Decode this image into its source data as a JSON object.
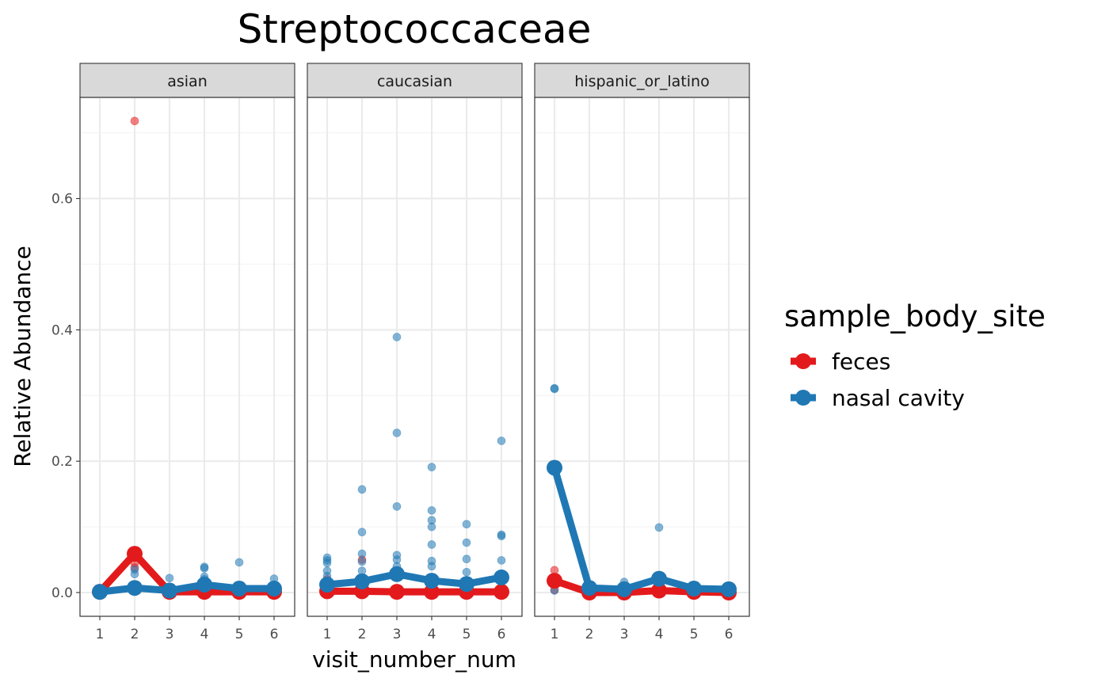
{
  "chart_data": {
    "type": "line",
    "title": "Streptococcaceae",
    "xlabel": "visit_number_num",
    "ylabel": "Relative Abundance",
    "x": [
      1,
      2,
      3,
      4,
      5,
      6
    ],
    "x_tick_labels": [
      "1",
      "2",
      "3",
      "4",
      "5",
      "6"
    ],
    "y_ticks": [
      0.0,
      0.2,
      0.4,
      0.6
    ],
    "y_tick_labels": [
      "0.0",
      "0.2",
      "0.4",
      "0.6"
    ],
    "ylim": [
      -0.036,
      0.79
    ],
    "xlim": [
      0.5,
      6.5
    ],
    "grid": true,
    "legend": {
      "title": "sample_body_site",
      "position": "right",
      "entries": [
        "feces",
        "nasal cavity"
      ]
    },
    "colors": {
      "feces": "#e31a1c",
      "nasal cavity": "#1f78b4"
    },
    "facets": [
      {
        "label": "asian",
        "series": [
          {
            "name": "feces",
            "mean": [
              0.001,
              0.059,
              0.001,
              0.001,
              0.001,
              0.001
            ],
            "points": [
              [
                1,
                0.002
              ],
              [
                2,
                0.718
              ],
              [
                2,
                0.045
              ],
              [
                2,
                0.038
              ],
              [
                3,
                0.001
              ],
              [
                4,
                0.001
              ],
              [
                5,
                0.001
              ],
              [
                6,
                0.001
              ]
            ]
          },
          {
            "name": "nasal cavity",
            "mean": [
              0.001,
              0.007,
              0.003,
              0.012,
              0.006,
              0.006
            ],
            "points": [
              [
                1,
                0.003
              ],
              [
                2,
                0.035
              ],
              [
                2,
                0.028
              ],
              [
                3,
                0.022
              ],
              [
                4,
                0.039
              ],
              [
                4,
                0.037
              ],
              [
                4,
                0.024
              ],
              [
                4,
                0.02
              ],
              [
                5,
                0.046
              ],
              [
                6,
                0.021
              ],
              [
                6,
                0.012
              ]
            ]
          }
        ]
      },
      {
        "label": "caucasian",
        "series": [
          {
            "name": "feces",
            "mean": [
              0.002,
              0.002,
              0.001,
              0.001,
              0.001,
              0.001
            ],
            "points": [
              [
                1,
                0.02
              ],
              [
                2,
                0.05
              ],
              [
                3,
                0.003
              ],
              [
                4,
                0.002
              ],
              [
                5,
                0.002
              ],
              [
                6,
                0.001
              ]
            ]
          },
          {
            "name": "nasal cavity",
            "mean": [
              0.012,
              0.017,
              0.028,
              0.018,
              0.013,
              0.023
            ],
            "points": [
              [
                1,
                0.053
              ],
              [
                1,
                0.049
              ],
              [
                1,
                0.045
              ],
              [
                1,
                0.033
              ],
              [
                1,
                0.025
              ],
              [
                2,
                0.157
              ],
              [
                2,
                0.092
              ],
              [
                2,
                0.059
              ],
              [
                2,
                0.047
              ],
              [
                2,
                0.033
              ],
              [
                3,
                0.389
              ],
              [
                3,
                0.243
              ],
              [
                3,
                0.131
              ],
              [
                3,
                0.057
              ],
              [
                3,
                0.05
              ],
              [
                3,
                0.04
              ],
              [
                4,
                0.191
              ],
              [
                4,
                0.125
              ],
              [
                4,
                0.11
              ],
              [
                4,
                0.1
              ],
              [
                4,
                0.073
              ],
              [
                4,
                0.048
              ],
              [
                4,
                0.04
              ],
              [
                5,
                0.104
              ],
              [
                5,
                0.076
              ],
              [
                5,
                0.051
              ],
              [
                5,
                0.031
              ],
              [
                6,
                0.231
              ],
              [
                6,
                0.088
              ],
              [
                6,
                0.086
              ],
              [
                6,
                0.049
              ]
            ]
          }
        ]
      },
      {
        "label": "hispanic_or_latino",
        "series": [
          {
            "name": "feces",
            "mean": [
              0.018,
              0.0,
              0.0,
              0.003,
              0.001,
              0.0
            ],
            "points": [
              [
                1,
                0.034
              ],
              [
                1,
                0.004
              ],
              [
                2,
                0.001
              ],
              [
                3,
                0.001
              ],
              [
                4,
                0.002
              ],
              [
                5,
                0.001
              ],
              [
                6,
                0.001
              ]
            ]
          },
          {
            "name": "nasal cavity",
            "mean": [
              0.19,
              0.007,
              0.005,
              0.021,
              0.006,
              0.005
            ],
            "points": [
              [
                1,
                0.311
              ],
              [
                1,
                0.31
              ],
              [
                1,
                0.003
              ],
              [
                3,
                0.016
              ],
              [
                4,
                0.099
              ],
              [
                4,
                0.02
              ]
            ]
          }
        ]
      }
    ]
  }
}
